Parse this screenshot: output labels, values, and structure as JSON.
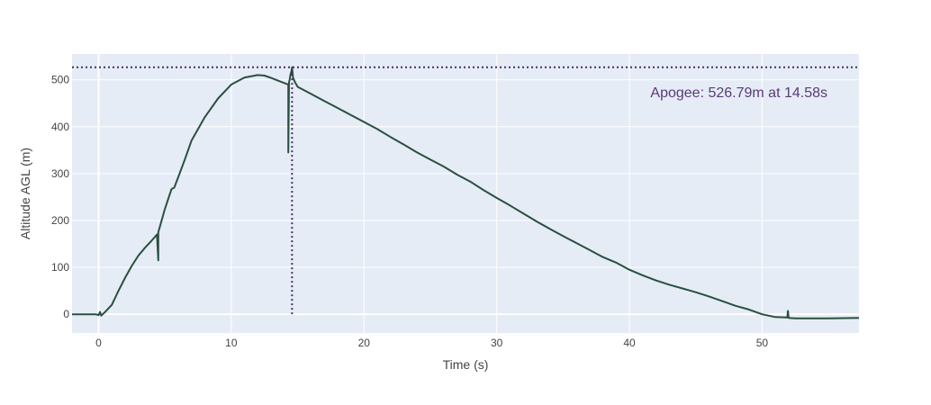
{
  "colors": {
    "plot_bg": "#e5ecf6",
    "grid": "#ffffff",
    "line": "#2a4f3f",
    "apogee": "#4b2c69",
    "annotation_text": "#5a3a78",
    "tick_text": "#444444"
  },
  "chart_data": {
    "type": "line",
    "title": "",
    "xlabel": "Time (s)",
    "ylabel": "Altitude AGL (m)",
    "xlim": [
      -2,
      57.3
    ],
    "ylim": [
      -40,
      555
    ],
    "grid": true,
    "x_ticks": [
      0,
      10,
      20,
      30,
      40,
      50
    ],
    "x_tick_labels": [
      "0",
      "10",
      "20",
      "30",
      "40",
      "50"
    ],
    "y_ticks": [
      0,
      100,
      200,
      300,
      400,
      500
    ],
    "y_tick_labels": [
      "0",
      "100",
      "200",
      "300",
      "400",
      "500"
    ],
    "series": [
      {
        "x": [
          -2,
          -1,
          -0.2,
          0,
          0.1,
          0.2,
          0.5,
          1,
          1.5,
          2,
          2.5,
          3,
          3.5,
          4,
          4.4,
          4.5,
          4.5,
          4.6,
          5,
          5.5,
          5.7,
          6,
          6.5,
          7,
          8,
          9,
          10,
          11,
          12,
          12.5,
          13,
          14,
          14.3,
          14.3,
          14.35,
          14.4,
          14.45,
          14.55,
          14.58,
          14.65,
          14.8,
          15,
          16,
          17,
          18,
          19,
          20,
          21,
          22,
          23,
          24,
          25,
          26,
          27,
          28,
          29,
          30,
          31,
          32,
          33,
          34,
          35,
          36,
          37,
          38,
          39,
          40,
          41,
          42,
          43,
          44,
          45,
          46,
          47,
          48,
          49,
          50,
          51,
          51.9,
          51.95,
          52,
          52.5,
          53,
          55,
          57.3
        ],
        "y": [
          0,
          0,
          0,
          -2,
          5,
          -3,
          5,
          20,
          50,
          78,
          103,
          125,
          142,
          157,
          170,
          115,
          175,
          185,
          225,
          267,
          270,
          292,
          330,
          370,
          420,
          460,
          490,
          505,
          510,
          509,
          504,
          493,
          490,
          345,
          495,
          500,
          510,
          520,
          526.79,
          505,
          495,
          485,
          470,
          455,
          440,
          425,
          410,
          395,
          378,
          362,
          345,
          330,
          315,
          298,
          283,
          265,
          248,
          232,
          215,
          198,
          182,
          167,
          152,
          137,
          122,
          110,
          95,
          83,
          72,
          63,
          55,
          47,
          38,
          28,
          18,
          10,
          0,
          -6,
          -7,
          7,
          -8,
          -9,
          -9,
          -9,
          -8
        ]
      }
    ],
    "apogee": {
      "altitude": 526.79,
      "time": 14.58,
      "label": "Apogee: 526.79m at 14.58s"
    }
  }
}
